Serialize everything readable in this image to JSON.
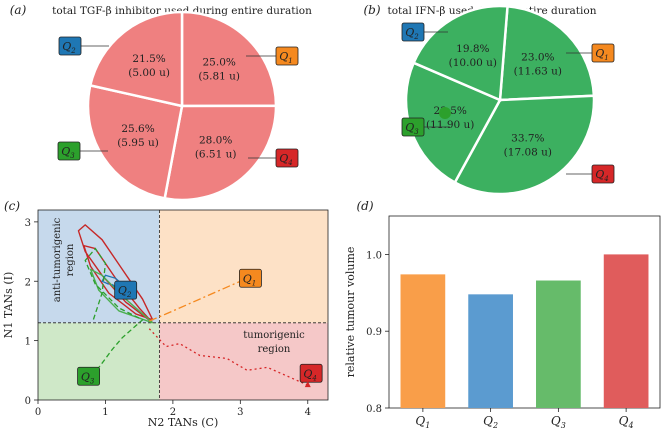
{
  "chart_data": [
    {
      "id": "a",
      "panel_label": "(a)",
      "type": "pie",
      "title": "total TGF-β inhibitor used during entire duration",
      "slice_color": "#ef8080",
      "slices": [
        {
          "quadrant": "Q",
          "sub": "1",
          "percent": "25.0%",
          "amount": "(5.81 u)",
          "value": 25.0,
          "badge_color": "#f5891f"
        },
        {
          "quadrant": "Q",
          "sub": "4",
          "percent": "28.0%",
          "amount": "(6.51 u)",
          "value": 28.0,
          "badge_color": "#d62728"
        },
        {
          "quadrant": "Q",
          "sub": "3",
          "percent": "25.6%",
          "amount": "(5.95 u)",
          "value": 25.6,
          "badge_color": "#2ca02c"
        },
        {
          "quadrant": "Q",
          "sub": "2",
          "percent": "21.5%",
          "amount": "(5.00 u)",
          "value": 21.5,
          "badge_color": "#1f77b4"
        }
      ]
    },
    {
      "id": "b",
      "panel_label": "(b)",
      "type": "pie",
      "title": "total IFN-β used during entire duration",
      "slice_color": "#3cb060",
      "slices": [
        {
          "quadrant": "Q",
          "sub": "1",
          "percent": "23.0%",
          "amount": "(11.63 u)",
          "value": 23.0,
          "badge_color": "#f5891f"
        },
        {
          "quadrant": "Q",
          "sub": "4",
          "percent": "33.7%",
          "amount": "(17.08 u)",
          "value": 33.7,
          "badge_color": "#d62728"
        },
        {
          "quadrant": "Q",
          "sub": "3",
          "percent": "23.5%",
          "amount": "(11.90 u)",
          "value": 23.5,
          "badge_color": "#2ca02c"
        },
        {
          "quadrant": "Q",
          "sub": "2",
          "percent": "19.8%",
          "amount": "(10.00 u)",
          "value": 19.8,
          "badge_color": "#1f77b4"
        }
      ]
    },
    {
      "id": "c",
      "panel_label": "(c)",
      "type": "line",
      "title": "",
      "xlabel": "N2 TANs (C)",
      "ylabel": "N1 TANs (I)",
      "xlim": [
        0,
        4.3
      ],
      "ylim": [
        0,
        3.2
      ],
      "xticks": [
        "0",
        "1",
        "2",
        "3",
        "4"
      ],
      "yticks": [
        "0",
        "1",
        "2",
        "3"
      ],
      "threshold": {
        "x": 1.8,
        "y": 1.3
      },
      "region_labels": [
        {
          "lines": [
            "anti-tumorigenic",
            "region"
          ]
        },
        {
          "lines": [
            "tumorigenic",
            "region"
          ]
        }
      ],
      "region_colors": [
        "#c6d9ec",
        "#fde1c6",
        "#cfe8c8",
        "#f5c8c8"
      ],
      "series": [
        {
          "name": "Q1",
          "badge": "Q",
          "sub": "1",
          "color": "#f5891f",
          "dash": "8 3 2 3",
          "x": [
            1.65,
            1.9,
            2.2,
            2.5,
            2.8,
            3.1
          ],
          "y": [
            1.33,
            1.45,
            1.6,
            1.75,
            1.9,
            2.05
          ]
        },
        {
          "name": "Q2",
          "badge": "Q",
          "sub": "2",
          "color": "#1f77b4",
          "dash": "",
          "x": [
            1.05,
            0.95,
            1.0,
            1.15,
            1.3,
            1.25,
            1.1
          ],
          "y": [
            1.95,
            2.0,
            2.1,
            2.05,
            1.9,
            1.8,
            1.95
          ]
        },
        {
          "name": "Q3",
          "badge": "Q",
          "sub": "3",
          "color": "#2ca02c",
          "dash": "5 3",
          "x": [
            0.8,
            0.95,
            1.1,
            1.25,
            1.45,
            1.55,
            1.2,
            0.85,
            0.7,
            0.85,
            1.0,
            0.95,
            0.82
          ],
          "y": [
            0.4,
            0.62,
            0.85,
            1.05,
            1.25,
            1.35,
            1.55,
            1.95,
            2.35,
            2.55,
            2.3,
            1.8,
            1.35
          ]
        },
        {
          "name": "Q4",
          "badge": "Q",
          "sub": "4",
          "color": "#d62728",
          "dash": "2 3",
          "x": [
            1.65,
            1.9,
            2.1,
            2.4,
            2.8,
            3.1,
            3.4,
            3.7,
            4.0
          ],
          "y": [
            1.2,
            0.9,
            0.95,
            0.75,
            0.7,
            0.5,
            0.55,
            0.4,
            0.25
          ]
        }
      ],
      "spirals": [
        {
          "color": "#c62828",
          "x": [
            1.7,
            1.3,
            0.95,
            0.7,
            0.6,
            0.7,
            0.95,
            1.25,
            1.55,
            1.7,
            1.45,
            1.05,
            0.78,
            0.68,
            0.85,
            1.15,
            1.5,
            1.7
          ],
          "y": [
            1.3,
            1.65,
            2.1,
            2.5,
            2.85,
            2.95,
            2.7,
            2.2,
            1.7,
            1.35,
            1.45,
            1.8,
            2.25,
            2.6,
            2.55,
            2.05,
            1.55,
            1.3
          ]
        },
        {
          "color": "#4caf50",
          "x": [
            1.7,
            1.2,
            0.9,
            0.78,
            0.95,
            1.3,
            1.7
          ],
          "y": [
            1.3,
            1.5,
            1.85,
            2.2,
            2.1,
            1.7,
            1.3
          ]
        }
      ],
      "end_marker": {
        "x": 4.0,
        "y": 0.25,
        "color": "#d62728"
      }
    },
    {
      "id": "d",
      "panel_label": "(d)",
      "type": "bar",
      "title": "",
      "xlabel": "",
      "ylabel": "relative tumour volume",
      "ylim": [
        0.8,
        1.05
      ],
      "yticks": [
        "0.8",
        "0.9",
        "1.0"
      ],
      "categories": [
        {
          "badge": "Q",
          "sub": "1"
        },
        {
          "badge": "Q",
          "sub": "2"
        },
        {
          "badge": "Q",
          "sub": "3"
        },
        {
          "badge": "Q",
          "sub": "4"
        }
      ],
      "values": [
        0.974,
        0.948,
        0.966,
        1.0
      ],
      "colors": [
        "#f99e49",
        "#5b9bd0",
        "#66bb6a",
        "#e05c5c"
      ]
    }
  ]
}
